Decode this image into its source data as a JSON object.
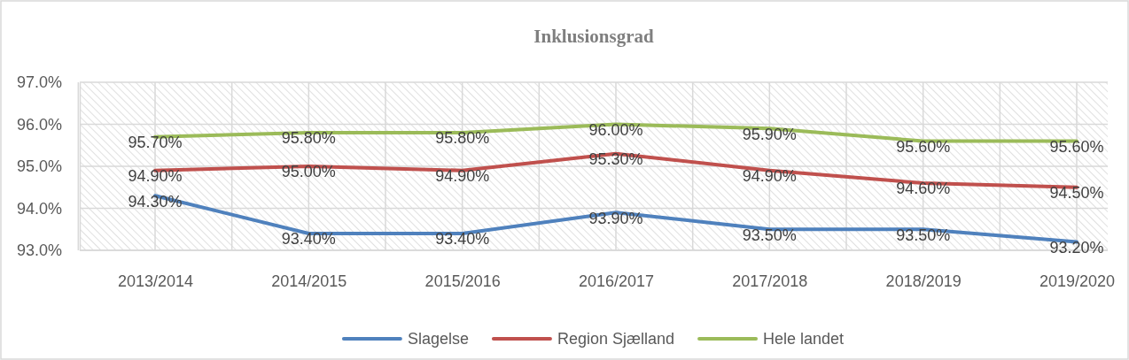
{
  "chart_data": {
    "type": "line",
    "title": "Inklusionsgrad",
    "categories": [
      "2013/2014",
      "2014/2015",
      "2015/2016",
      "2016/2017",
      "2017/2018",
      "2018/2019",
      "2019/2020"
    ],
    "series": [
      {
        "name": "Slagelse",
        "color": "#4f81bd",
        "values": [
          94.3,
          93.4,
          93.4,
          93.9,
          93.5,
          93.5,
          93.2
        ],
        "value_labels": [
          "94.30%",
          "93.40%",
          "93.40%",
          "93.90%",
          "93.50%",
          "93.50%",
          "93.20%"
        ]
      },
      {
        "name": "Region Sjælland",
        "color": "#c0504d",
        "values": [
          94.9,
          95.0,
          94.9,
          95.3,
          94.9,
          94.6,
          94.5
        ],
        "value_labels": [
          "94.90%",
          "95.00%",
          "94.90%",
          "95.30%",
          "94.90%",
          "94.60%",
          "94.50%"
        ]
      },
      {
        "name": "Hele landet",
        "color": "#9bbb59",
        "values": [
          95.7,
          95.8,
          95.8,
          96.0,
          95.9,
          95.6,
          95.6
        ],
        "value_labels": [
          "95.70%",
          "95.80%",
          "95.80%",
          "96.00%",
          "95.90%",
          "95.60%",
          "95.60%"
        ]
      }
    ],
    "ylim": [
      93,
      97
    ],
    "yticks": [
      {
        "value": 93,
        "label": "93.0%"
      },
      {
        "value": 94,
        "label": "94.0%"
      },
      {
        "value": 95,
        "label": "95.0%"
      },
      {
        "value": 96,
        "label": "96.0%"
      },
      {
        "value": 97,
        "label": "97.0%"
      }
    ],
    "grid": true,
    "legend": "bottom",
    "marker": "none",
    "line_style": "solid"
  }
}
